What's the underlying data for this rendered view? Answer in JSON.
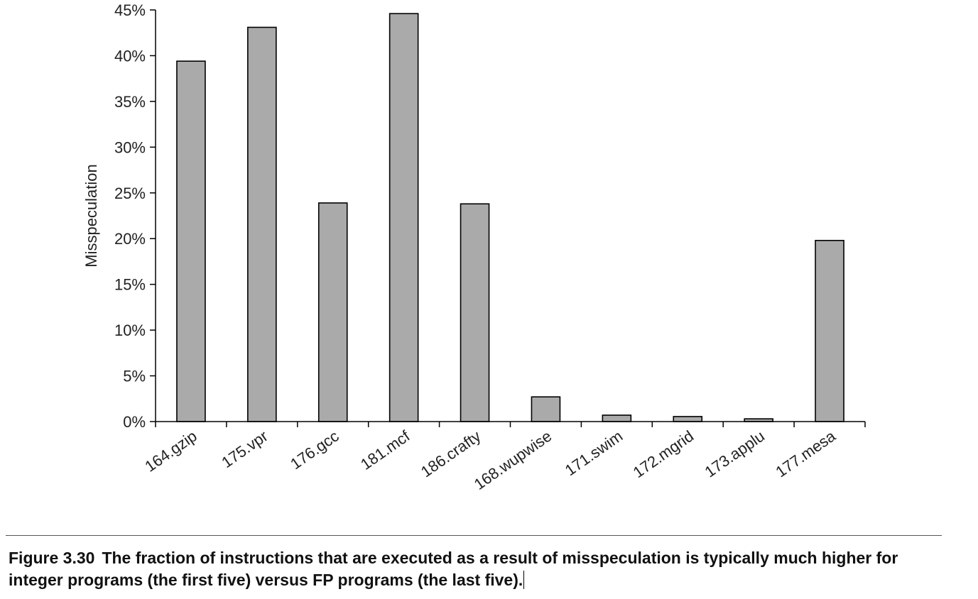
{
  "chart_data": {
    "type": "bar",
    "ylabel": "Misspeculation",
    "xlabel": "",
    "ylim": [
      0,
      45
    ],
    "y_ticks": [
      "0%",
      "5%",
      "10%",
      "15%",
      "20%",
      "25%",
      "30%",
      "35%",
      "40%",
      "45%"
    ],
    "categories": [
      "164.gzip",
      "175.vpr",
      "176.gcc",
      "181.mcf",
      "186.crafty",
      "168.wupwise",
      "171.swim",
      "172.mgrid",
      "173.applu",
      "177.mesa"
    ],
    "values": [
      39.4,
      43.1,
      23.9,
      44.6,
      23.8,
      2.7,
      0.7,
      0.55,
      0.3,
      19.8
    ],
    "grid": false,
    "bar_color": "#aaaaaa"
  },
  "caption": {
    "number": "Figure 3.30",
    "text": "The fraction of instructions that are executed as a result of misspeculation is typically much higher for integer programs (the first five) versus FP programs (the last five)."
  }
}
